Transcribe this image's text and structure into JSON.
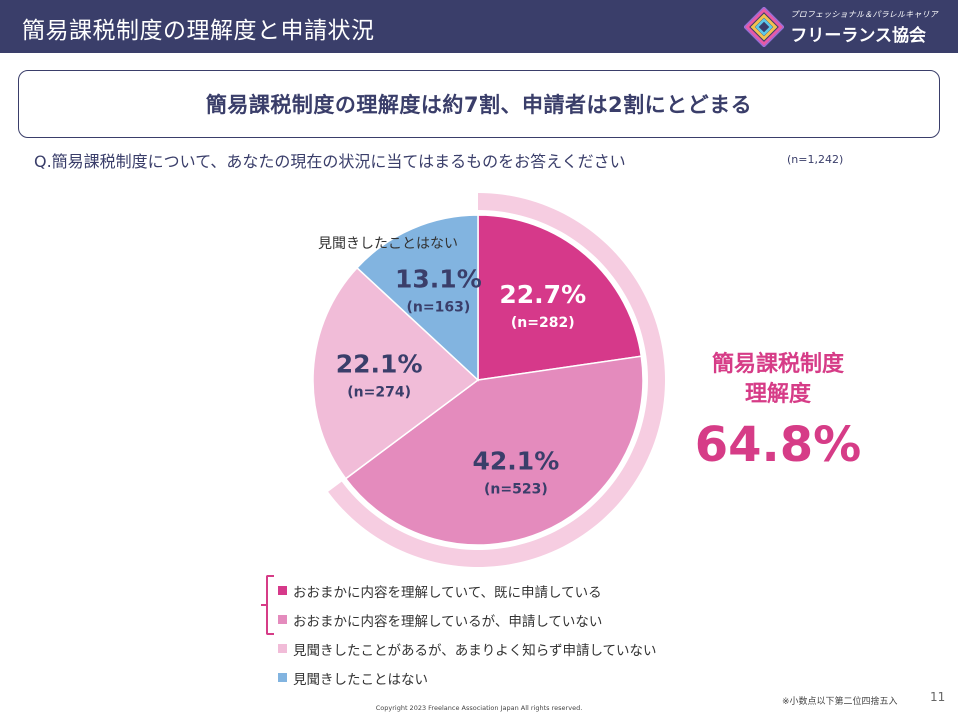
{
  "header": {
    "title": "簡易課税制度の理解度と申請状況",
    "logo_sub": "プロフェッショナル＆パラレルキャリア",
    "logo_main": "フリーランス協会"
  },
  "headline": "簡易課税制度の理解度は約7割、申請者は2割にとどまる",
  "question": "Q.簡易課税制度について、あなたの現在の状況に当てはまるものをお答えください",
  "sample_size": "(n=1,242)",
  "chart_data": {
    "type": "pie",
    "start_angle_deg": 0,
    "direction": "clockwise",
    "slices": [
      {
        "label": "おおまかに内容を理解していて、既に申請している",
        "value": 22.7,
        "value_label": "22.7%",
        "n_label": "(n=282)",
        "color": "#d6398a",
        "text_color": "#ffffff"
      },
      {
        "label": "おおまかに内容を理解しているが、申請していない",
        "value": 42.1,
        "value_label": "42.1%",
        "n_label": "(n=523)",
        "color": "#e48bbd",
        "text_color": "#3a3e6a"
      },
      {
        "label": "見聞きしたことがあるが、あまりよく知らず申請していない",
        "value": 22.1,
        "value_label": "22.1%",
        "n_label": "(n=274)",
        "color": "#f1bcd8",
        "text_color": "#3a3e6a"
      },
      {
        "label": "見聞きしたことはない",
        "value": 13.1,
        "value_label": "13.1%",
        "n_label": "(n=163)",
        "color": "#82b4e0",
        "text_color": "#3a3e6a"
      }
    ],
    "outer_label": "見聞きしたことはない",
    "highlight_ring": {
      "covers_slices": [
        0,
        1
      ],
      "color": "#f6cde1"
    }
  },
  "callout": {
    "line1": "簡易課税制度",
    "line2": "理解度",
    "value": "64.8%",
    "color": "#d63c87"
  },
  "footer": {
    "note": "※小数点以下第二位四捨五入",
    "page": "11",
    "copyright": "Copyright 2023 Freelance Association Japan  All rights reserved."
  }
}
